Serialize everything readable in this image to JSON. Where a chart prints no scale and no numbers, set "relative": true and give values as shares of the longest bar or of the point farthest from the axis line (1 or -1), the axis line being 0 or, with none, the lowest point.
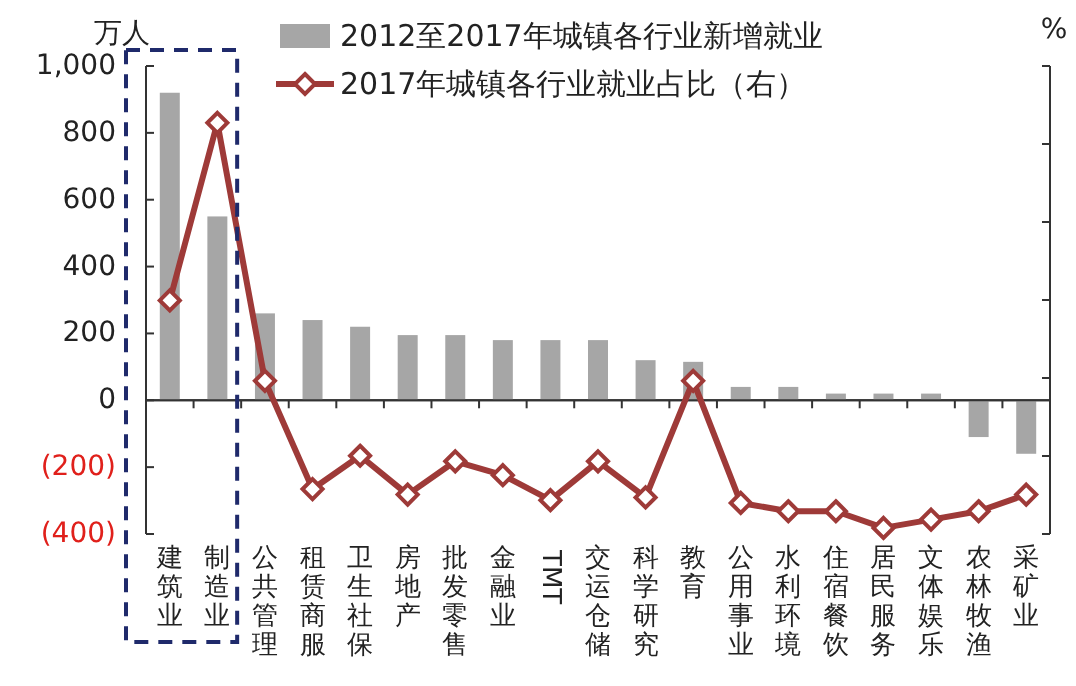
{
  "chart_data": [
    {
      "type": "bar",
      "ylabel": "万人",
      "categories": [
        "建筑业",
        "制造业",
        "公共管理",
        "租赁商服",
        "卫生社保",
        "房地产",
        "批发零售",
        "金融业",
        "TMT",
        "交运仓储",
        "科学研究",
        "教育",
        "公用事业",
        "水利环境",
        "住宿餐饮",
        "居民服务",
        "文体娱乐",
        "农林牧渔",
        "采矿业"
      ],
      "series": [
        {
          "name": "2012至2017年城镇各行业新增就业",
          "color": "#a6a6a6",
          "values": [
            920,
            550,
            260,
            240,
            220,
            195,
            195,
            180,
            180,
            180,
            120,
            115,
            40,
            40,
            20,
            20,
            20,
            -110,
            -160
          ]
        }
      ],
      "ylim": [
        -400,
        1000
      ],
      "yticks": [
        {
          "value": -400,
          "label": "(400)"
        },
        {
          "value": -200,
          "label": "(200)"
        },
        0,
        200,
        400,
        600,
        800,
        {
          "value": 1000,
          "label": "1,000"
        }
      ],
      "legend": "top"
    },
    {
      "type": "line",
      "relative": true,
      "ylabel": "%",
      "categories": [
        null,
        null,
        null,
        null,
        null,
        null,
        null,
        null,
        null,
        null,
        null,
        null,
        null,
        null,
        null,
        null,
        null,
        null,
        null
      ],
      "series": [
        {
          "name": "2017年城镇各行业就业占比（右）",
          "color": "#9e3a38",
          "marker": "diamond",
          "values": [
            0.36,
            1,
            0.07,
            -0.32,
            -0.2,
            -0.34,
            -0.22,
            -0.27,
            -0.36,
            -0.22,
            -0.35,
            0.07,
            -0.37,
            -0.4,
            -0.4,
            -0.46,
            -0.43,
            -0.4,
            -0.34
          ]
        }
      ]
    }
  ]
}
